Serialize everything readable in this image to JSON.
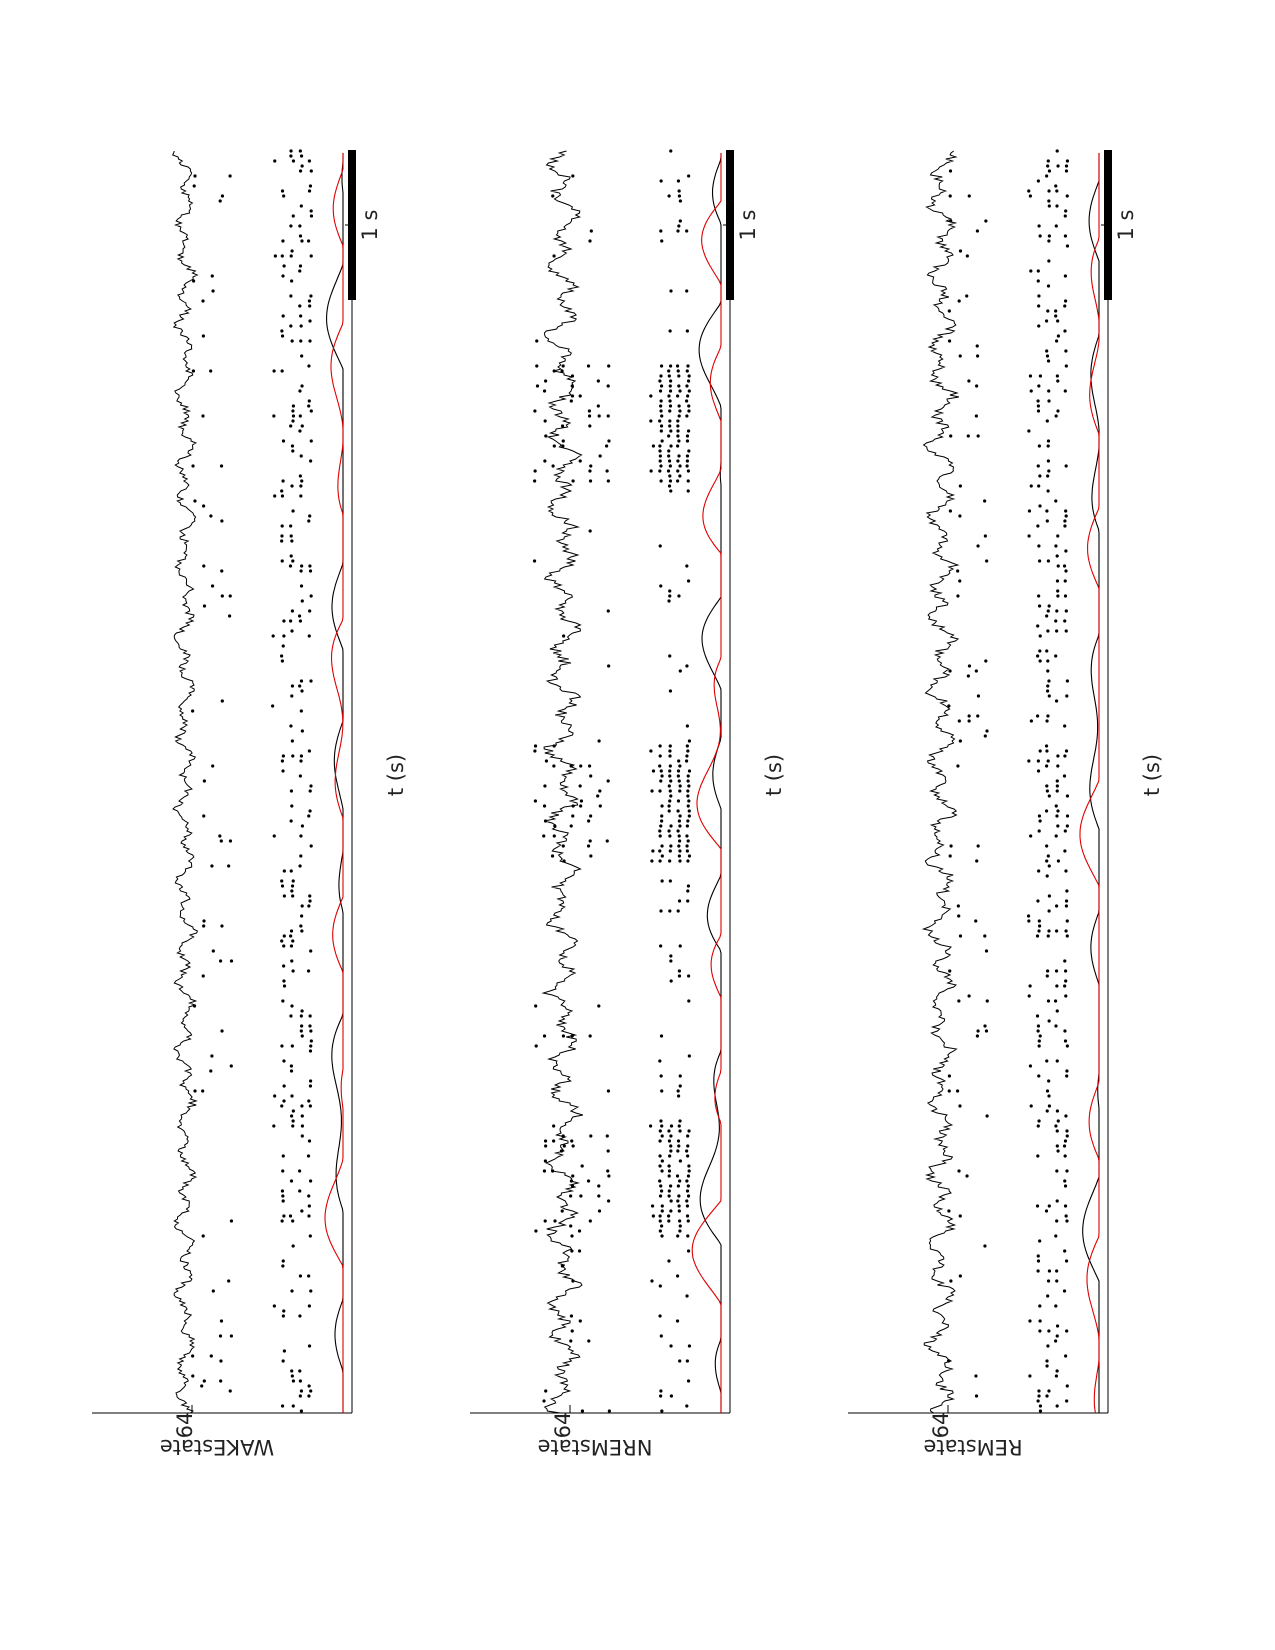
{
  "chart_data": [
    {
      "type": "line",
      "ylabel": "WAKEstate",
      "ytick": "64",
      "xlabel": "t (s)",
      "scalebar_label": "1 s",
      "series_colors": [
        "#000000",
        "#e00000"
      ]
    },
    {
      "type": "line",
      "ylabel": "NREMstate",
      "ytick": "64",
      "xlabel": "t (s)",
      "scalebar_label": "1 s",
      "series_colors": [
        "#000000",
        "#e00000"
      ]
    },
    {
      "type": "line",
      "ylabel": "REMstate",
      "ytick": "64",
      "xlabel": "t (s)",
      "scalebar_label": "1 s",
      "series_colors": [
        "#000000",
        "#e00000"
      ]
    }
  ]
}
